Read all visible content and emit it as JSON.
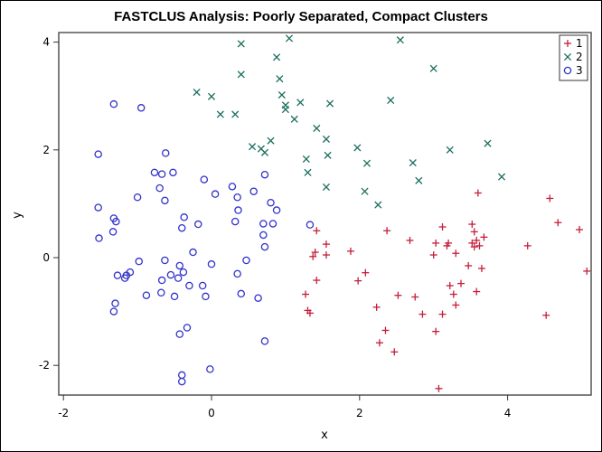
{
  "chart_data": {
    "type": "scatter",
    "title": "FASTCLUS Analysis: Poorly Separated, Compact Clusters",
    "xlabel": "x",
    "ylabel": "y",
    "xlim": [
      -2.06,
      5.13
    ],
    "ylim": [
      -2.56,
      4.17
    ],
    "xticks": [
      -2,
      0,
      2,
      4
    ],
    "yticks": [
      -2,
      0,
      2,
      4
    ],
    "grid": false,
    "legend_position": "top-right inside",
    "series": [
      {
        "name": "1",
        "marker": "plus",
        "color": "#c41e3a",
        "points": [
          [
            1.42,
            0.5
          ],
          [
            1.55,
            0.25
          ],
          [
            1.4,
            0.1
          ],
          [
            1.37,
            0.02
          ],
          [
            1.55,
            0.05
          ],
          [
            1.42,
            -0.42
          ],
          [
            1.27,
            -0.68
          ],
          [
            1.3,
            -0.98
          ],
          [
            1.33,
            -1.03
          ],
          [
            1.88,
            0.12
          ],
          [
            1.98,
            -0.43
          ],
          [
            2.08,
            -0.28
          ],
          [
            2.37,
            0.5
          ],
          [
            2.23,
            -0.92
          ],
          [
            2.27,
            -1.58
          ],
          [
            2.35,
            -1.35
          ],
          [
            2.47,
            -1.75
          ],
          [
            2.52,
            -0.7
          ],
          [
            2.68,
            0.32
          ],
          [
            2.75,
            -0.73
          ],
          [
            2.85,
            -1.05
          ],
          [
            3.0,
            0.05
          ],
          [
            3.03,
            0.27
          ],
          [
            3.03,
            -1.37
          ],
          [
            3.07,
            -2.43
          ],
          [
            3.12,
            0.57
          ],
          [
            3.12,
            -1.05
          ],
          [
            3.18,
            0.22
          ],
          [
            3.2,
            0.27
          ],
          [
            3.22,
            -0.52
          ],
          [
            3.27,
            -0.68
          ],
          [
            3.3,
            0.08
          ],
          [
            3.3,
            -0.88
          ],
          [
            3.37,
            -0.48
          ],
          [
            3.47,
            -0.15
          ],
          [
            3.52,
            0.62
          ],
          [
            3.55,
            0.2
          ],
          [
            3.55,
            0.48
          ],
          [
            3.58,
            0.32
          ],
          [
            3.6,
            1.2
          ],
          [
            3.58,
            -0.63
          ],
          [
            3.62,
            0.22
          ],
          [
            3.65,
            -0.2
          ],
          [
            3.68,
            0.38
          ],
          [
            3.52,
            0.27
          ],
          [
            4.27,
            0.22
          ],
          [
            4.57,
            1.1
          ],
          [
            4.68,
            0.65
          ],
          [
            4.52,
            -1.07
          ],
          [
            4.97,
            0.52
          ],
          [
            5.07,
            -0.25
          ]
        ]
      },
      {
        "name": "2",
        "marker": "x",
        "color": "#1a6e5e",
        "points": [
          [
            0.4,
            3.97
          ],
          [
            1.05,
            4.07
          ],
          [
            2.55,
            4.04
          ],
          [
            0.88,
            3.72
          ],
          [
            0.4,
            3.4
          ],
          [
            0.92,
            3.32
          ],
          [
            3.0,
            3.51
          ],
          [
            -0.2,
            3.07
          ],
          [
            0.0,
            2.99
          ],
          [
            0.95,
            3.02
          ],
          [
            1.0,
            2.83
          ],
          [
            1.0,
            2.75
          ],
          [
            1.2,
            2.88
          ],
          [
            1.6,
            2.86
          ],
          [
            0.12,
            2.66
          ],
          [
            0.32,
            2.66
          ],
          [
            1.12,
            2.57
          ],
          [
            2.42,
            2.92
          ],
          [
            1.42,
            2.4
          ],
          [
            1.55,
            2.2
          ],
          [
            0.55,
            2.06
          ],
          [
            0.67,
            2.02
          ],
          [
            0.72,
            1.95
          ],
          [
            0.8,
            2.17
          ],
          [
            1.28,
            1.83
          ],
          [
            1.57,
            1.9
          ],
          [
            1.97,
            2.04
          ],
          [
            2.1,
            1.75
          ],
          [
            2.72,
            1.76
          ],
          [
            3.22,
            2.0
          ],
          [
            3.73,
            2.12
          ],
          [
            1.3,
            1.58
          ],
          [
            1.55,
            1.31
          ],
          [
            2.07,
            1.23
          ],
          [
            2.25,
            0.98
          ],
          [
            2.8,
            1.43
          ],
          [
            3.92,
            1.5
          ]
        ]
      },
      {
        "name": "3",
        "marker": "circle",
        "color": "#3333cc",
        "points": [
          [
            -1.32,
            2.85
          ],
          [
            -0.95,
            2.78
          ],
          [
            -1.53,
            1.92
          ],
          [
            -0.62,
            1.94
          ],
          [
            -0.77,
            1.58
          ],
          [
            -0.67,
            1.55
          ],
          [
            -0.52,
            1.58
          ],
          [
            -0.1,
            1.45
          ],
          [
            -0.7,
            1.29
          ],
          [
            0.05,
            1.18
          ],
          [
            -1.0,
            1.12
          ],
          [
            -0.63,
            1.06
          ],
          [
            0.28,
            1.32
          ],
          [
            0.35,
            1.12
          ],
          [
            -1.53,
            0.93
          ],
          [
            0.57,
            1.23
          ],
          [
            0.8,
            1.02
          ],
          [
            0.88,
            0.88
          ],
          [
            -1.32,
            0.73
          ],
          [
            -1.29,
            0.67
          ],
          [
            0.36,
            0.88
          ],
          [
            -0.37,
            0.75
          ],
          [
            -0.4,
            0.55
          ],
          [
            -0.18,
            0.62
          ],
          [
            0.32,
            0.67
          ],
          [
            0.7,
            0.63
          ],
          [
            0.83,
            0.63
          ],
          [
            0.7,
            0.42
          ],
          [
            0.72,
            1.54
          ],
          [
            1.33,
            0.61
          ],
          [
            -1.33,
            0.48
          ],
          [
            -1.52,
            0.36
          ],
          [
            0.72,
            0.2
          ],
          [
            0.47,
            -0.05
          ],
          [
            -0.63,
            -0.05
          ],
          [
            -0.98,
            -0.07
          ],
          [
            -0.25,
            0.1
          ],
          [
            -1.1,
            -0.27
          ],
          [
            -1.15,
            -0.33
          ],
          [
            -1.27,
            -0.33
          ],
          [
            -1.17,
            -0.38
          ],
          [
            -0.43,
            -0.15
          ],
          [
            -0.38,
            -0.27
          ],
          [
            0.0,
            -0.12
          ],
          [
            -0.55,
            -0.32
          ],
          [
            0.35,
            -0.3
          ],
          [
            -0.67,
            -0.42
          ],
          [
            -0.12,
            -0.52
          ],
          [
            -0.3,
            -0.52
          ],
          [
            -0.45,
            -0.38
          ],
          [
            -0.68,
            -0.65
          ],
          [
            -0.88,
            -0.7
          ],
          [
            -0.5,
            -0.72
          ],
          [
            -0.08,
            -0.72
          ],
          [
            0.4,
            -0.67
          ],
          [
            0.63,
            -0.75
          ],
          [
            -1.3,
            -0.85
          ],
          [
            -1.32,
            -1.0
          ],
          [
            -0.33,
            -1.3
          ],
          [
            -0.43,
            -1.42
          ],
          [
            0.72,
            -1.55
          ],
          [
            -0.4,
            -2.18
          ],
          [
            -0.4,
            -2.3
          ],
          [
            -0.02,
            -2.07
          ]
        ]
      }
    ]
  },
  "legend": {
    "items": [
      {
        "label": "1",
        "symbol": "+"
      },
      {
        "label": "2",
        "symbol": "×"
      },
      {
        "label": "3",
        "symbol": "○"
      }
    ]
  },
  "axes": {
    "x_ticks": [
      "-2",
      "0",
      "2",
      "4"
    ],
    "y_ticks": [
      "4",
      "2",
      "0",
      "-2"
    ]
  }
}
